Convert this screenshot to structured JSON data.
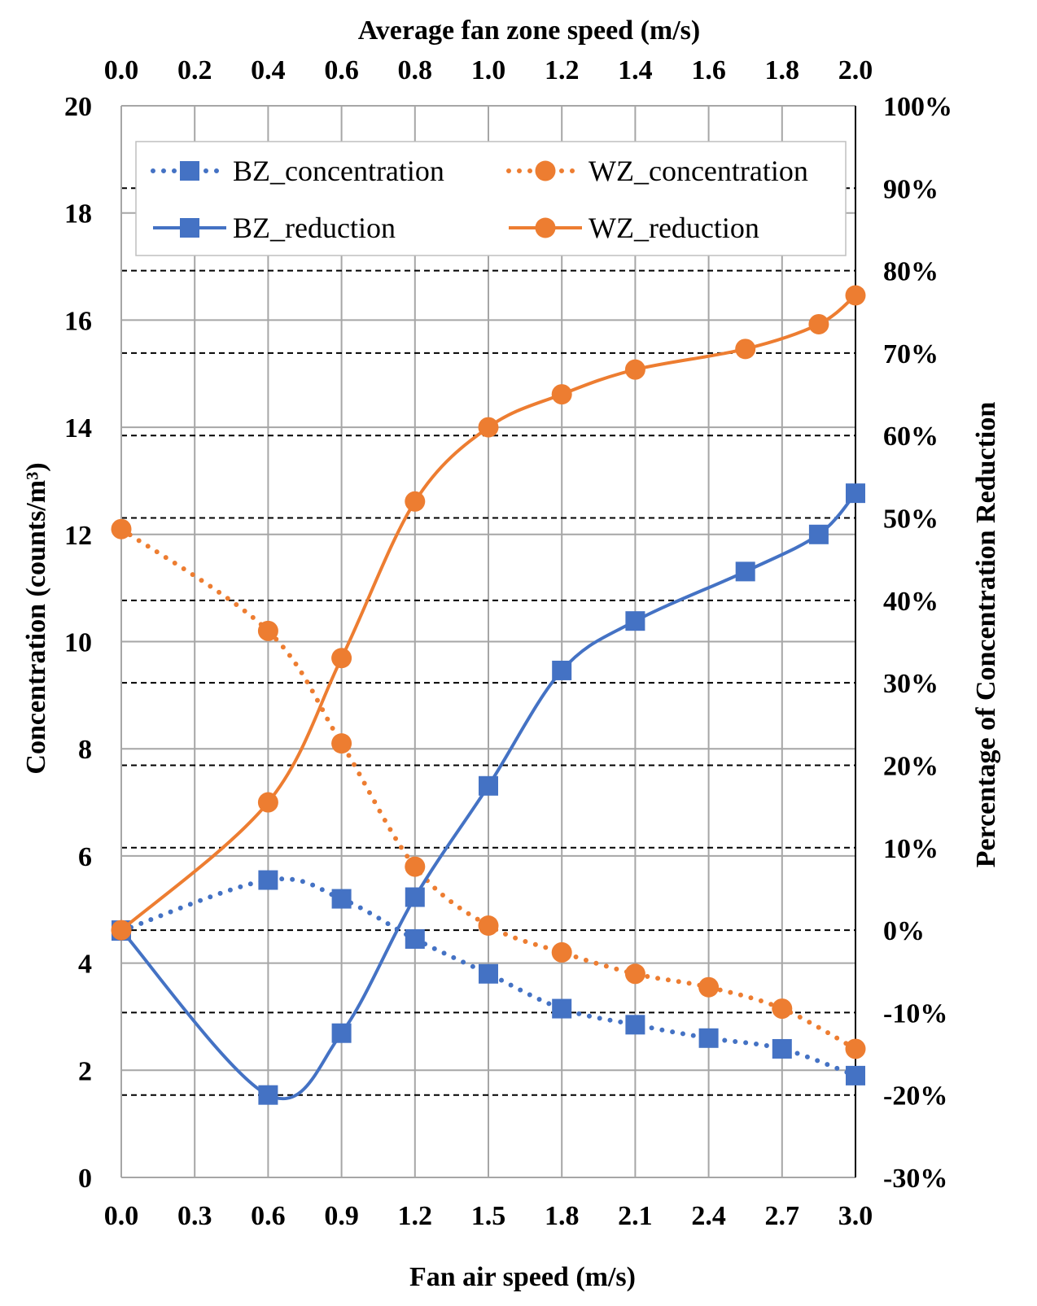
{
  "chart_data": {
    "type": "line",
    "x_label_bottom": "Fan air speed (m/s)",
    "x_label_top": "Average fan zone speed (m/s)",
    "y_label_left": "Concentration (counts/m³)",
    "y_label_right": "Percentage of Concentration Reduction",
    "x_bottom_ticks": [
      "0.0",
      "0.3",
      "0.6",
      "0.9",
      "1.2",
      "1.5",
      "1.8",
      "2.1",
      "2.4",
      "2.7",
      "3.0"
    ],
    "x_top_ticks": [
      "0.0",
      "0.2",
      "0.4",
      "0.6",
      "0.8",
      "1.0",
      "1.2",
      "1.4",
      "1.6",
      "1.8",
      "2.0"
    ],
    "y_left_ticks": [
      "0",
      "2",
      "4",
      "6",
      "8",
      "10",
      "12",
      "14",
      "16",
      "18",
      "20"
    ],
    "y_right_ticks": [
      "-30%",
      "-20%",
      "-10%",
      "0%",
      "10%",
      "20%",
      "30%",
      "40%",
      "50%",
      "60%",
      "70%",
      "80%",
      "90%",
      "100%"
    ],
    "xlim": [
      0,
      3.0
    ],
    "ylim_left": [
      0,
      20
    ],
    "ylim_right": [
      -30,
      100
    ],
    "grid": true,
    "legend_position": "top",
    "series": [
      {
        "name": "BZ_concentration",
        "axis": "left",
        "style": "dotted",
        "marker": "square",
        "color": "#4472C4",
        "x": [
          0.0,
          0.6,
          0.9,
          1.2,
          1.5,
          1.8,
          2.1,
          2.4,
          2.7,
          3.0
        ],
        "y": [
          4.6,
          5.55,
          5.2,
          4.45,
          3.8,
          3.15,
          2.85,
          2.6,
          2.4,
          1.9
        ]
      },
      {
        "name": "WZ_concentration",
        "axis": "left",
        "style": "dotted",
        "marker": "circle",
        "color": "#ED7D31",
        "x": [
          0.0,
          0.6,
          0.9,
          1.2,
          1.5,
          1.8,
          2.1,
          2.4,
          2.7,
          3.0
        ],
        "y": [
          12.1,
          10.2,
          8.1,
          5.8,
          4.7,
          4.2,
          3.8,
          3.55,
          3.15,
          2.4
        ]
      },
      {
        "name": "BZ_reduction",
        "axis": "right",
        "style": "solid",
        "marker": "square",
        "color": "#4472C4",
        "x": [
          0.0,
          0.6,
          0.9,
          1.2,
          1.5,
          1.8,
          2.1,
          2.55,
          2.85,
          3.0
        ],
        "y": [
          0,
          -20,
          -12.5,
          4,
          17.5,
          31.5,
          37.5,
          43.5,
          48,
          53
        ]
      },
      {
        "name": "WZ_reduction",
        "axis": "right",
        "style": "solid",
        "marker": "circle",
        "color": "#ED7D31",
        "x": [
          0.0,
          0.6,
          0.9,
          1.2,
          1.5,
          1.8,
          2.1,
          2.55,
          2.85,
          3.0
        ],
        "y": [
          0,
          15.5,
          33,
          52,
          61,
          65,
          68,
          70.5,
          73.5,
          77
        ]
      }
    ]
  }
}
